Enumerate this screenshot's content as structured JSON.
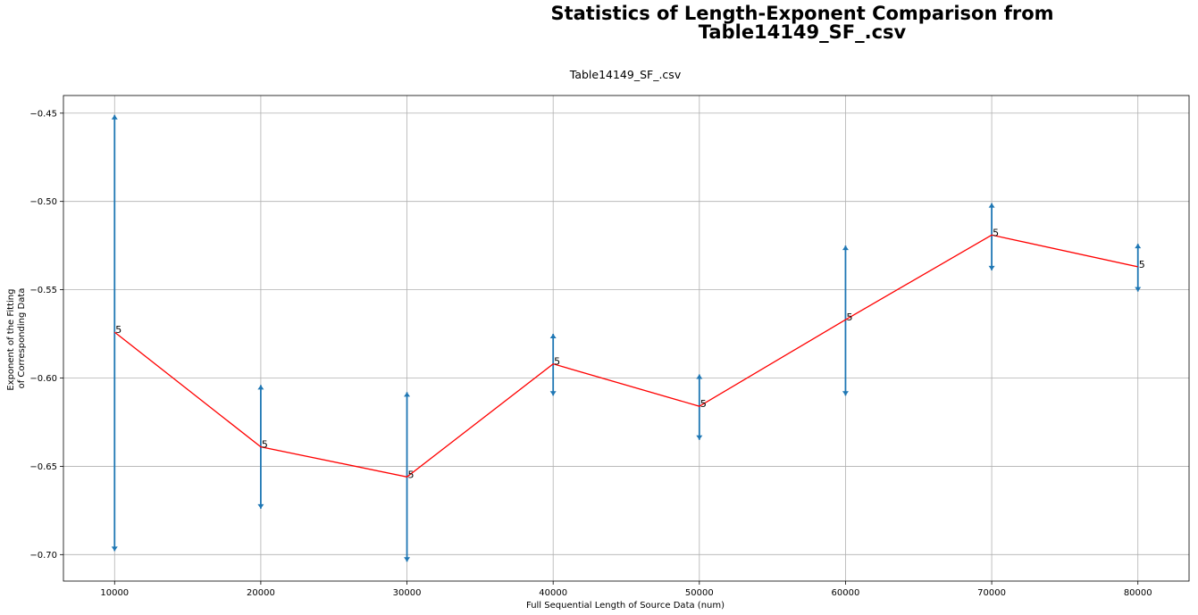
{
  "chart_data": {
    "type": "line",
    "suptitle_lines": [
      "Statistics of Length-Exponent Comparison from",
      "Table14149_SF_.csv"
    ],
    "title": "Table14149_SF_.csv",
    "xlabel": "Full Sequential Length of Source Data (num)",
    "ylabel_lines": [
      "Exponent of the Fitting",
      "of Corresponding Data"
    ],
    "xlim": [
      6500,
      83500
    ],
    "ylim": [
      -0.715,
      -0.44
    ],
    "xticks": [
      10000,
      20000,
      30000,
      40000,
      50000,
      60000,
      70000,
      80000
    ],
    "xtick_labels": [
      "10000",
      "20000",
      "30000",
      "40000",
      "50000",
      "60000",
      "70000",
      "80000"
    ],
    "yticks": [
      -0.7,
      -0.65,
      -0.6,
      -0.55,
      -0.5,
      -0.45
    ],
    "ytick_labels": [
      "−0.70",
      "−0.65",
      "−0.60",
      "−0.55",
      "−0.50",
      "−0.45"
    ],
    "grid": true,
    "series": [
      {
        "x": [
          10000,
          20000,
          30000,
          40000,
          50000,
          60000,
          70000,
          80000
        ],
        "mean": [
          -0.574,
          -0.639,
          -0.656,
          -0.592,
          -0.616,
          -0.567,
          -0.519,
          -0.537
        ],
        "upper": [
          -0.451,
          -0.604,
          -0.608,
          -0.575,
          -0.598,
          -0.525,
          -0.501,
          -0.524
        ],
        "lower": [
          -0.698,
          -0.674,
          -0.704,
          -0.61,
          -0.635,
          -0.61,
          -0.539,
          -0.551
        ],
        "counts": [
          "5",
          "5",
          "5",
          "5",
          "5",
          "5",
          "5",
          "5"
        ],
        "line_color": "#ff0000",
        "errorbar_color": "#1f77b4"
      }
    ]
  }
}
